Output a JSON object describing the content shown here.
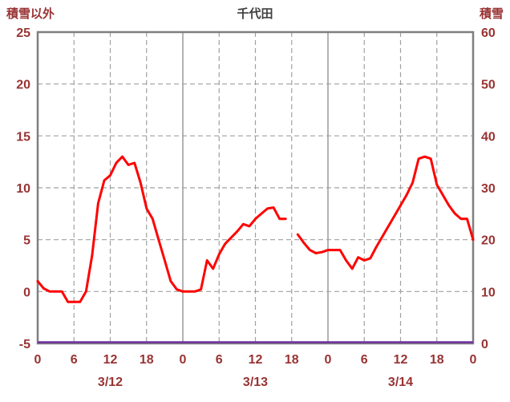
{
  "chart_data": {
    "type": "line",
    "title": "千代田",
    "left_axis": {
      "label": "積雪以外",
      "min": -5,
      "max": 25,
      "ticks": [
        25,
        20,
        15,
        10,
        5,
        0,
        -5
      ]
    },
    "right_axis": {
      "label": "積雪",
      "min": 0,
      "max": 60,
      "ticks": [
        60,
        50,
        40,
        30,
        20,
        10,
        0
      ]
    },
    "x_axis": {
      "hours_total": 72,
      "tick_step": 6,
      "hour_ticks": [
        0,
        6,
        12,
        18,
        0,
        6,
        12,
        18,
        0,
        6,
        12,
        18,
        0
      ],
      "day_labels": [
        "3/12",
        "3/13",
        "3/14"
      ],
      "grid": true
    },
    "series": [
      {
        "name": "temperature",
        "axis": "left",
        "color": "#ff0000",
        "width": 3,
        "values": [
          1,
          0.3,
          0,
          0,
          0,
          -1,
          -1,
          -1,
          0,
          3.5,
          8.5,
          10.7,
          11.2,
          12.4,
          13,
          12.2,
          12.4,
          10.5,
          8,
          7,
          5,
          3,
          1,
          0.2,
          0,
          0,
          0,
          0.2,
          3,
          2.2,
          3.6,
          4.6,
          5.2,
          5.8,
          6.5,
          6.3,
          7,
          7.5,
          8,
          8.1,
          7,
          7,
          null,
          5.5,
          4.7,
          4,
          3.7,
          3.8,
          4,
          4,
          4,
          3,
          2.2,
          3.3,
          3,
          3.2,
          4.3,
          5.3,
          6.3,
          7.3,
          8.3,
          9.3,
          10.5,
          12.8,
          13,
          12.8,
          10.3,
          9.3,
          8.3,
          7.5,
          7,
          7,
          5
        ]
      },
      {
        "name": "snow-depth",
        "axis": "right",
        "color": "#7030a0",
        "width": 2.5,
        "constant_value": 0
      }
    ],
    "colors": {
      "grid": "#a0a0a0",
      "border": "#7f7f7f",
      "tick_text": "#993333",
      "title_text": "#404040"
    },
    "legend_position": "none",
    "grid_on": true
  }
}
